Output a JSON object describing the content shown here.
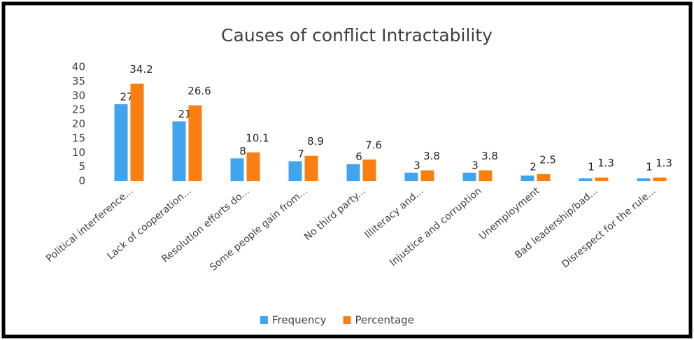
{
  "chart_data": {
    "type": "bar",
    "title": "Causes of conflict Intractability",
    "categories": [
      "Political interference...",
      "Lack of cooperation...",
      "Resolution efforts do...",
      "Some people gain from...",
      "No third party...",
      "Illiteracy and...",
      "Injustice and corruption",
      "Unemployment",
      "Bad leadership/bad...",
      "Disrespect for the rule..."
    ],
    "series": [
      {
        "name": "Frequency",
        "color": "#41a5ee",
        "values": [
          27,
          21,
          8,
          7,
          6,
          3,
          3,
          2,
          1,
          1
        ]
      },
      {
        "name": "Percentage",
        "color": "#f98010",
        "values": [
          34.2,
          26.6,
          10.1,
          8.9,
          7.6,
          3.8,
          3.8,
          2.5,
          1.3,
          1.3
        ]
      }
    ],
    "ylim": [
      0,
      40
    ],
    "yticks": [
      0,
      5,
      10,
      15,
      20,
      25,
      30,
      35,
      40
    ],
    "grid": false,
    "legend": "bottom"
  }
}
